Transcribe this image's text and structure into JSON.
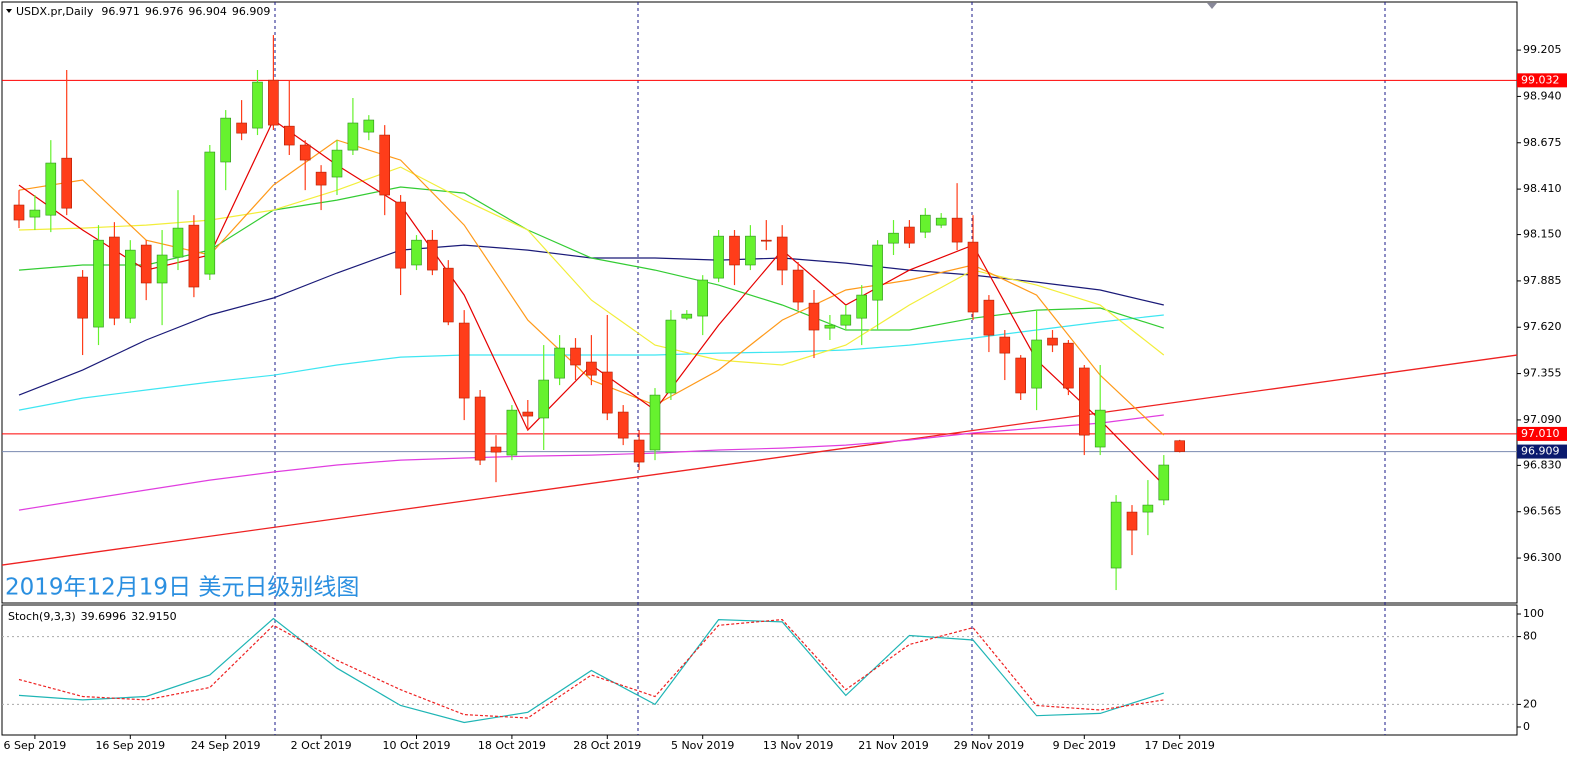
{
  "chart_data": {
    "type": "candlestick",
    "symbol": "USDX.pr,Daily",
    "annotation": "2019年12月19日 美元日级别线图",
    "ylim": [
      96.043,
      99.48
    ],
    "yticks": [
      99.205,
      {
        "value": 98.94,
        "label": "98.940"
      },
      98.675,
      {
        "value": 98.41,
        "label": "98.410"
      },
      {
        "value": 98.15,
        "label": "98.150"
      },
      97.885,
      {
        "value": 97.62,
        "label": "97.620"
      },
      97.355,
      {
        "value": 97.09,
        "label": "97.090"
      },
      {
        "value": 96.83,
        "label": "96.830"
      },
      96.565,
      {
        "value": 96.3,
        "label": "96.300"
      }
    ],
    "x_labels": [
      "6 Sep 2019",
      "16 Sep 2019",
      "24 Sep 2019",
      "2 Oct 2019",
      "10 Oct 2019",
      "18 Oct 2019",
      "28 Oct 2019",
      "5 Nov 2019",
      "13 Nov 2019",
      "21 Nov 2019",
      "29 Nov 2019",
      "9 Dec 2019",
      "17 Dec 2019"
    ],
    "bull_color": "#66f22e",
    "bear_color": "#ff3d1a",
    "candles": [
      {
        "o": 98.319,
        "h": 98.404,
        "l": 98.187,
        "c": 98.233
      },
      {
        "o": 98.25,
        "h": 98.376,
        "l": 98.176,
        "c": 98.29
      },
      {
        "o": 98.261,
        "h": 98.69,
        "l": 98.164,
        "c": 98.559
      },
      {
        "o": 98.587,
        "h": 99.091,
        "l": 98.261,
        "c": 98.301
      },
      {
        "o": 97.907,
        "h": 97.947,
        "l": 97.461,
        "c": 97.672
      },
      {
        "o": 97.621,
        "h": 98.204,
        "l": 97.518,
        "c": 98.118
      },
      {
        "o": 98.136,
        "h": 98.221,
        "l": 97.632,
        "c": 97.672
      },
      {
        "o": 97.672,
        "h": 98.118,
        "l": 97.644,
        "c": 98.061
      },
      {
        "o": 98.09,
        "h": 98.118,
        "l": 97.775,
        "c": 97.873
      },
      {
        "o": 97.873,
        "h": 98.176,
        "l": 97.632,
        "c": 98.033
      },
      {
        "o": 98.021,
        "h": 98.404,
        "l": 97.947,
        "c": 98.187
      },
      {
        "o": 98.204,
        "h": 98.261,
        "l": 97.792,
        "c": 97.85
      },
      {
        "o": 97.924,
        "h": 98.662,
        "l": 97.89,
        "c": 98.622
      },
      {
        "o": 98.565,
        "h": 98.862,
        "l": 98.404,
        "c": 98.816
      },
      {
        "o": 98.788,
        "h": 98.919,
        "l": 98.69,
        "c": 98.73
      },
      {
        "o": 98.759,
        "h": 99.091,
        "l": 98.719,
        "c": 99.022
      },
      {
        "o": 99.033,
        "h": 99.291,
        "l": 98.748,
        "c": 98.776
      },
      {
        "o": 98.77,
        "h": 99.033,
        "l": 98.605,
        "c": 98.662
      },
      {
        "o": 98.662,
        "h": 98.69,
        "l": 98.404,
        "c": 98.576
      },
      {
        "o": 98.507,
        "h": 98.547,
        "l": 98.29,
        "c": 98.433
      },
      {
        "o": 98.479,
        "h": 98.69,
        "l": 98.376,
        "c": 98.633
      },
      {
        "o": 98.633,
        "h": 98.931,
        "l": 98.605,
        "c": 98.788
      },
      {
        "o": 98.736,
        "h": 98.833,
        "l": 98.69,
        "c": 98.805
      },
      {
        "o": 98.719,
        "h": 98.776,
        "l": 98.261,
        "c": 98.376
      },
      {
        "o": 98.336,
        "h": 98.376,
        "l": 97.804,
        "c": 97.958
      },
      {
        "o": 97.976,
        "h": 98.147,
        "l": 97.947,
        "c": 98.118
      },
      {
        "o": 98.118,
        "h": 98.176,
        "l": 97.918,
        "c": 97.947
      },
      {
        "o": 97.958,
        "h": 98.004,
        "l": 97.632,
        "c": 97.65
      },
      {
        "o": 97.644,
        "h": 97.718,
        "l": 97.089,
        "c": 97.215
      },
      {
        "o": 97.221,
        "h": 97.261,
        "l": 96.832,
        "c": 96.86
      },
      {
        "o": 96.935,
        "h": 97.003,
        "l": 96.734,
        "c": 96.906
      },
      {
        "o": 96.889,
        "h": 97.175,
        "l": 96.86,
        "c": 97.146
      },
      {
        "o": 97.135,
        "h": 97.204,
        "l": 97.032,
        "c": 97.112
      },
      {
        "o": 97.101,
        "h": 97.518,
        "l": 96.918,
        "c": 97.318
      },
      {
        "o": 97.329,
        "h": 97.575,
        "l": 97.289,
        "c": 97.501
      },
      {
        "o": 97.501,
        "h": 97.558,
        "l": 97.318,
        "c": 97.404
      },
      {
        "o": 97.421,
        "h": 97.575,
        "l": 97.289,
        "c": 97.346
      },
      {
        "o": 97.364,
        "h": 97.69,
        "l": 97.089,
        "c": 97.129
      },
      {
        "o": 97.135,
        "h": 97.175,
        "l": 96.946,
        "c": 96.986
      },
      {
        "o": 96.975,
        "h": 97.032,
        "l": 96.803,
        "c": 96.849
      },
      {
        "o": 96.918,
        "h": 97.272,
        "l": 96.86,
        "c": 97.232
      },
      {
        "o": 97.244,
        "h": 97.718,
        "l": 97.204,
        "c": 97.661
      },
      {
        "o": 97.672,
        "h": 97.718,
        "l": 97.661,
        "c": 97.695
      },
      {
        "o": 97.684,
        "h": 97.918,
        "l": 97.575,
        "c": 97.89
      },
      {
        "o": 97.901,
        "h": 98.176,
        "l": 97.878,
        "c": 98.141
      },
      {
        "o": 98.141,
        "h": 98.176,
        "l": 97.861,
        "c": 97.976
      },
      {
        "o": 97.976,
        "h": 98.204,
        "l": 97.947,
        "c": 98.141
      },
      {
        "o": 98.118,
        "h": 98.233,
        "l": 98.061,
        "c": 98.113
      },
      {
        "o": 98.136,
        "h": 98.204,
        "l": 97.861,
        "c": 97.947
      },
      {
        "o": 97.947,
        "h": 97.993,
        "l": 97.718,
        "c": 97.764
      },
      {
        "o": 97.758,
        "h": 97.833,
        "l": 97.444,
        "c": 97.604
      },
      {
        "o": 97.615,
        "h": 97.69,
        "l": 97.547,
        "c": 97.632
      },
      {
        "o": 97.632,
        "h": 97.747,
        "l": 97.604,
        "c": 97.69
      },
      {
        "o": 97.672,
        "h": 97.861,
        "l": 97.518,
        "c": 97.804
      },
      {
        "o": 97.775,
        "h": 98.118,
        "l": 97.604,
        "c": 98.09
      },
      {
        "o": 98.101,
        "h": 98.233,
        "l": 98.033,
        "c": 98.158
      },
      {
        "o": 98.193,
        "h": 98.233,
        "l": 98.073,
        "c": 98.101
      },
      {
        "o": 98.164,
        "h": 98.301,
        "l": 98.13,
        "c": 98.261
      },
      {
        "o": 98.204,
        "h": 98.273,
        "l": 98.187,
        "c": 98.244
      },
      {
        "o": 98.244,
        "h": 98.444,
        "l": 98.061,
        "c": 98.107
      },
      {
        "o": 98.107,
        "h": 98.261,
        "l": 97.661,
        "c": 97.707
      },
      {
        "o": 97.775,
        "h": 97.804,
        "l": 97.478,
        "c": 97.575
      },
      {
        "o": 97.564,
        "h": 97.604,
        "l": 97.318,
        "c": 97.472
      },
      {
        "o": 97.444,
        "h": 97.461,
        "l": 97.204,
        "c": 97.244
      },
      {
        "o": 97.272,
        "h": 97.718,
        "l": 97.146,
        "c": 97.547
      },
      {
        "o": 97.558,
        "h": 97.604,
        "l": 97.478,
        "c": 97.518
      },
      {
        "o": 97.529,
        "h": 97.547,
        "l": 97.232,
        "c": 97.272
      },
      {
        "o": 97.387,
        "h": 97.404,
        "l": 96.889,
        "c": 97.003
      },
      {
        "o": 96.935,
        "h": 97.404,
        "l": 96.889,
        "c": 97.146
      },
      {
        "o": 96.243,
        "h": 96.66,
        "l": 96.117,
        "c": 96.62
      },
      {
        "o": 96.563,
        "h": 96.603,
        "l": 96.317,
        "c": 96.46
      },
      {
        "o": 96.563,
        "h": 96.746,
        "l": 96.431,
        "c": 96.603
      },
      {
        "o": 96.632,
        "h": 96.889,
        "l": 96.603,
        "c": 96.832
      },
      {
        "o": 96.971,
        "h": 96.976,
        "l": 96.904,
        "c": 96.909
      }
    ],
    "series": [
      {
        "color": "#1a1a78",
        "values": [
          97.232,
          97.375,
          97.547,
          97.69,
          97.787,
          97.93,
          98.061,
          98.09,
          98.061,
          98.016,
          98.016,
          98.004,
          98.016,
          97.987,
          97.947,
          97.918,
          97.878,
          97.833,
          97.747
        ]
      },
      {
        "color": "#3ee6f2",
        "values": [
          97.146,
          97.215,
          97.261,
          97.306,
          97.346,
          97.404,
          97.449,
          97.461,
          97.461,
          97.461,
          97.461,
          97.472,
          97.478,
          97.49,
          97.518,
          97.558,
          97.604,
          97.65,
          97.69
        ]
      },
      {
        "color": "#e03ee0",
        "values": [
          96.574,
          96.632,
          96.689,
          96.746,
          96.792,
          96.832,
          96.86,
          96.872,
          96.883,
          96.889,
          96.9,
          96.918,
          96.929,
          96.946,
          96.975,
          97.015,
          97.043,
          97.072,
          97.118
        ]
      },
      {
        "color": "#33cc33",
        "values": [
          97.947,
          97.976,
          97.976,
          98.061,
          98.29,
          98.347,
          98.422,
          98.387,
          98.176,
          98.016,
          97.947,
          97.861,
          97.747,
          97.604,
          97.604,
          97.672,
          97.718,
          97.73,
          97.615
        ]
      },
      {
        "color": "#f2ee3a",
        "values": [
          98.176,
          98.187,
          98.204,
          98.233,
          98.29,
          98.404,
          98.536,
          98.347,
          98.176,
          97.775,
          97.518,
          97.432,
          97.404,
          97.518,
          97.747,
          97.947,
          97.861,
          97.747,
          97.461
        ]
      },
      {
        "color": "#ff9a1a",
        "values": [
          98.404,
          98.462,
          98.118,
          98.033,
          98.433,
          98.69,
          98.576,
          98.204,
          97.661,
          97.318,
          97.175,
          97.375,
          97.661,
          97.833,
          97.89,
          97.976,
          97.804,
          97.346,
          97.003
        ]
      },
      {
        "color": "#e60000",
        "values": [
          98.433,
          98.176,
          97.947,
          98.033,
          98.805,
          98.547,
          98.319,
          97.804,
          97.032,
          97.404,
          97.146,
          97.632,
          98.061,
          97.747,
          97.947,
          98.09,
          97.432,
          97.089,
          96.717
        ]
      }
    ],
    "trendline": {
      "color": "#ee2222",
      "start": 96.26,
      "end": 97.461
    },
    "price_lines": [
      {
        "value": 99.032,
        "color": "#ff0000",
        "box": "#ff0000"
      },
      {
        "value": 97.01,
        "label": "97.010",
        "color": "#ff0000",
        "box": "#ff0000"
      },
      {
        "value": 96.909,
        "color": "#7a8ab0",
        "box": "#0b1a6e"
      }
    ],
    "stoch": {
      "label": "Stoch(9,3,3)",
      "k_value": 39.6996,
      "d_value": {
        "value": 32.915,
        "label": "32.9150"
      },
      "ylim": [
        0,
        100
      ],
      "yticks": [
        0,
        20,
        80,
        100
      ],
      "series": [
        {
          "color": "#1fb5b5",
          "values": [
            28,
            24,
            27,
            46,
            96,
            52,
            19,
            4,
            13,
            50,
            20,
            95,
            93,
            28,
            81,
            77,
            10,
            12,
            30
          ]
        },
        {
          "color": "#ee2222",
          "dashed": true,
          "values": [
            42,
            27,
            24,
            35,
            90,
            59,
            33,
            11,
            8,
            46,
            27,
            90,
            95,
            33,
            73,
            88,
            19,
            15,
            24
          ]
        }
      ]
    }
  }
}
